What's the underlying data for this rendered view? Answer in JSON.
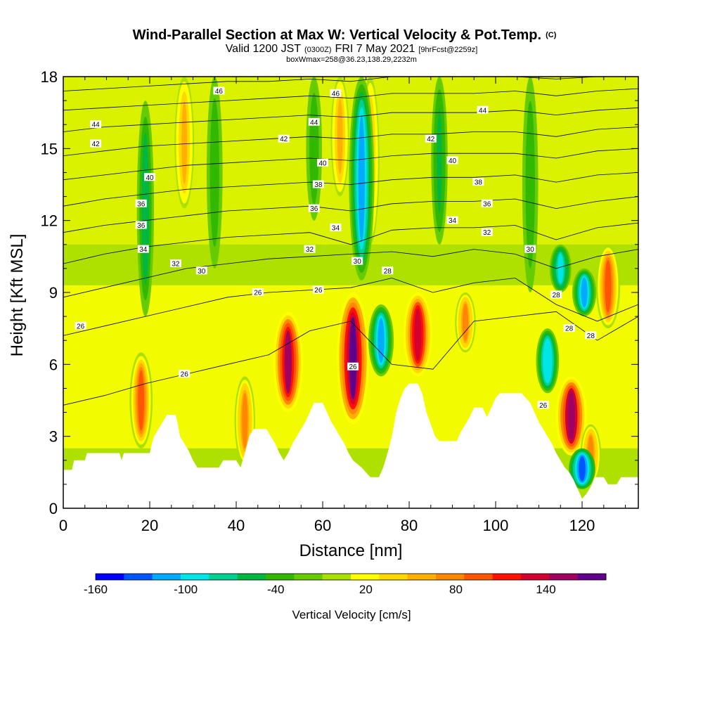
{
  "chart_data": {
    "type": "heatmap",
    "title": {
      "main": "Wind-Parallel Section at Max W: Vertical Velocity & Pot.Temp.",
      "copyright": "(C)",
      "valid_prefix": "Valid 1200 JST",
      "valid_utc": "(0300Z)",
      "valid_date": "FRI 7 May 2021",
      "forecast": "[9hrFcst@2259z]",
      "boxinfo": "boxWmax=258@36.23,138.29,2232m"
    },
    "xlabel": "Distance [nm]",
    "ylabel": "Height [Kft MSL]",
    "xlim": [
      0,
      133
    ],
    "ylim": [
      0,
      18
    ],
    "x_ticks": [
      "0",
      "20",
      "40",
      "60",
      "80",
      "100",
      "120"
    ],
    "y_ticks": [
      "0",
      "3",
      "6",
      "9",
      "12",
      "15",
      "18"
    ],
    "colorbar": {
      "label": "Vertical Velocity [cm/s]",
      "tick_labels": [
        "-160",
        "-100",
        "-40",
        "20",
        "80",
        "140"
      ],
      "tick_values": [
        -160,
        -100,
        -40,
        20,
        80,
        140
      ],
      "bin_edges": [
        -160,
        -140,
        -120,
        -100,
        -80,
        -60,
        -40,
        -20,
        0,
        20,
        40,
        60,
        80,
        100,
        120,
        140,
        160,
        180
      ],
      "colors": [
        "#0000ff",
        "#0055ff",
        "#00aaff",
        "#00e5e5",
        "#00d090",
        "#00b840",
        "#33b800",
        "#66cc00",
        "#aae000",
        "#ffff00",
        "#ffd800",
        "#ffb000",
        "#ff8800",
        "#ff5500",
        "#ff1100",
        "#d40030",
        "#a00060",
        "#60008a"
      ]
    },
    "updraft_columns": [
      {
        "x": 18,
        "w": 100,
        "ybot": 2.5,
        "ytop": 6.5
      },
      {
        "x": 28,
        "w": 70,
        "ybot": 12.5,
        "ytop": 18
      },
      {
        "x": 42,
        "w": 80,
        "ybot": 1.8,
        "ytop": 5.5
      },
      {
        "x": 52,
        "w": 160,
        "ybot": 4.0,
        "ytop": 8.2
      },
      {
        "x": 64,
        "w": 60,
        "ybot": 13.0,
        "ytop": 18
      },
      {
        "x": 67,
        "w": 180,
        "ybot": 3.5,
        "ytop": 9.0
      },
      {
        "x": 71,
        "w": 60,
        "ybot": 11.0,
        "ytop": 18
      },
      {
        "x": 82,
        "w": 150,
        "ybot": 5.5,
        "ytop": 9.0
      },
      {
        "x": 93,
        "w": 80,
        "ybot": 6.5,
        "ytop": 9.0
      },
      {
        "x": 117.5,
        "w": 170,
        "ybot": 2.2,
        "ytop": 5.5
      },
      {
        "x": 122,
        "w": 80,
        "ybot": 1.0,
        "ytop": 3.5
      },
      {
        "x": 126,
        "w": 110,
        "ybot": 7.5,
        "ytop": 11.0
      }
    ],
    "downdraft_columns": [
      {
        "x": 69,
        "w": -120,
        "ybot": 9.5,
        "ytop": 18
      },
      {
        "x": 73.5,
        "w": -120,
        "ybot": 5.5,
        "ytop": 8.5
      },
      {
        "x": 112,
        "w": -100,
        "ybot": 4.8,
        "ytop": 7.5
      },
      {
        "x": 115,
        "w": -90,
        "ybot": 9.0,
        "ytop": 11.0
      },
      {
        "x": 120,
        "w": -130,
        "ybot": 0.8,
        "ytop": 2.5
      },
      {
        "x": 120.5,
        "w": -110,
        "ybot": 8.0,
        "ytop": 10.0
      },
      {
        "x": 19,
        "w": -50,
        "ybot": 8.0,
        "ytop": 17.0
      },
      {
        "x": 35,
        "w": -40,
        "ybot": 10.0,
        "ytop": 18.0
      },
      {
        "x": 58,
        "w": -40,
        "ybot": 12.0,
        "ytop": 18.0
      },
      {
        "x": 87,
        "w": -45,
        "ybot": 11.0,
        "ytop": 18.0
      },
      {
        "x": 108,
        "w": -40,
        "ybot": 9.0,
        "ytop": 18.0
      }
    ],
    "terrain_kft": [
      [
        0,
        1.6
      ],
      [
        2,
        1.6
      ],
      [
        2.5,
        2.0
      ],
      [
        5,
        2.0
      ],
      [
        5.5,
        2.3
      ],
      [
        13,
        2.3
      ],
      [
        13.5,
        2.0
      ],
      [
        14,
        2.3
      ],
      [
        20,
        2.3
      ],
      [
        20.5,
        2.7
      ],
      [
        21,
        3.0
      ],
      [
        22,
        3.3
      ],
      [
        23,
        3.6
      ],
      [
        24,
        3.9
      ],
      [
        26,
        3.9
      ],
      [
        26.5,
        3.5
      ],
      [
        27,
        3.0
      ],
      [
        28,
        2.7
      ],
      [
        29,
        2.4
      ],
      [
        30,
        2.0
      ],
      [
        31,
        1.7
      ],
      [
        36,
        1.7
      ],
      [
        37,
        2.0
      ],
      [
        40,
        2.0
      ],
      [
        41,
        1.7
      ],
      [
        42,
        2.3
      ],
      [
        43,
        3.0
      ],
      [
        44,
        3.3
      ],
      [
        47,
        3.3
      ],
      [
        48,
        3.0
      ],
      [
        49,
        2.7
      ],
      [
        50,
        2.3
      ],
      [
        51,
        2.0
      ],
      [
        52,
        2.3
      ],
      [
        53,
        2.7
      ],
      [
        54,
        3.0
      ],
      [
        55,
        3.3
      ],
      [
        56,
        3.6
      ],
      [
        57,
        4.0
      ],
      [
        58,
        4.4
      ],
      [
        60,
        4.4
      ],
      [
        61,
        4.0
      ],
      [
        62,
        3.6
      ],
      [
        63,
        3.3
      ],
      [
        64,
        3.0
      ],
      [
        65,
        2.7
      ],
      [
        66,
        2.3
      ],
      [
        67,
        2.0
      ],
      [
        69,
        1.7
      ],
      [
        71,
        1.3
      ],
      [
        73,
        1.3
      ],
      [
        74,
        1.7
      ],
      [
        75,
        2.3
      ],
      [
        76,
        3.0
      ],
      [
        77,
        4.0
      ],
      [
        78,
        4.6
      ],
      [
        79,
        5.0
      ],
      [
        80,
        5.2
      ],
      [
        82,
        5.2
      ],
      [
        83,
        4.8
      ],
      [
        84,
        4.0
      ],
      [
        85,
        3.5
      ],
      [
        86,
        3.0
      ],
      [
        87,
        2.8
      ],
      [
        91,
        2.8
      ],
      [
        92,
        3.2
      ],
      [
        93,
        3.5
      ],
      [
        94,
        3.8
      ],
      [
        95,
        4.2
      ],
      [
        97,
        4.2
      ],
      [
        98,
        3.8
      ],
      [
        99,
        4.2
      ],
      [
        100,
        4.6
      ],
      [
        101,
        4.8
      ],
      [
        106,
        4.8
      ],
      [
        107,
        4.6
      ],
      [
        108,
        4.4
      ],
      [
        109,
        4.0
      ],
      [
        110,
        3.6
      ],
      [
        111,
        3.3
      ],
      [
        112,
        3.0
      ],
      [
        113,
        2.7
      ],
      [
        114,
        2.3
      ],
      [
        115,
        2.0
      ],
      [
        116,
        1.7
      ],
      [
        117,
        1.5
      ],
      [
        118,
        1.2
      ],
      [
        119,
        0.8
      ],
      [
        120,
        0.4
      ],
      [
        121,
        0.6
      ],
      [
        122,
        0.9
      ],
      [
        123,
        1.3
      ],
      [
        125,
        1.3
      ],
      [
        126,
        1.0
      ],
      [
        128,
        1.0
      ],
      [
        129,
        1.3
      ],
      [
        133,
        1.3
      ]
    ],
    "isentropes": [
      {
        "theta": 26,
        "y": [
          4.3,
          4.7,
          5.2,
          5.6,
          6.0,
          6.4,
          7.4,
          7.8,
          6.0,
          5.8,
          7.8,
          8.0,
          8.2,
          7.0,
          8.0
        ]
      },
      {
        "theta": 28,
        "y": [
          7.2,
          7.6,
          8.0,
          8.4,
          8.8,
          9.0,
          9.1,
          9.2,
          9.6,
          9.0,
          9.4,
          9.6,
          8.5,
          7.8,
          8.5
        ]
      },
      {
        "theta": 30,
        "y": [
          8.8,
          9.2,
          9.6,
          10.0,
          10.2,
          10.4,
          10.5,
          10.6,
          10.7,
          10.5,
          10.8,
          10.6,
          10.0,
          10.5,
          10.8
        ]
      },
      {
        "theta": 32,
        "y": [
          10.2,
          10.6,
          10.9,
          11.1,
          11.3,
          11.4,
          11.5,
          11.0,
          11.6,
          11.7,
          11.7,
          11.8,
          11.2,
          11.7,
          11.9
        ]
      },
      {
        "theta": 34,
        "y": [
          11.5,
          11.8,
          12.0,
          12.2,
          12.4,
          12.5,
          12.6,
          12.4,
          12.7,
          12.8,
          12.8,
          12.9,
          12.5,
          12.8,
          13.0
        ]
      },
      {
        "theta": 36,
        "y": [
          12.6,
          12.9,
          13.1,
          13.3,
          13.4,
          13.5,
          13.6,
          13.5,
          13.7,
          13.8,
          13.8,
          13.9,
          13.6,
          13.9,
          14.0
        ]
      },
      {
        "theta": 38,
        "y": [
          13.7,
          13.9,
          14.1,
          14.3,
          14.4,
          14.5,
          14.6,
          14.5,
          14.7,
          14.8,
          14.8,
          14.8,
          14.6,
          14.9,
          15.0
        ]
      },
      {
        "theta": 40,
        "y": [
          14.7,
          14.9,
          15.1,
          15.2,
          15.3,
          15.4,
          15.5,
          15.4,
          15.6,
          15.6,
          15.7,
          15.7,
          15.5,
          15.8,
          15.9
        ]
      },
      {
        "theta": 42,
        "y": [
          15.7,
          15.9,
          16.0,
          16.1,
          16.2,
          16.3,
          16.4,
          16.3,
          16.5,
          16.5,
          16.5,
          16.6,
          16.4,
          16.6,
          16.7
        ]
      },
      {
        "theta": 44,
        "y": [
          16.6,
          16.7,
          16.8,
          16.9,
          17.0,
          17.1,
          17.2,
          17.1,
          17.3,
          17.3,
          17.3,
          17.4,
          17.2,
          17.4,
          17.5
        ]
      },
      {
        "theta": 46,
        "y": [
          17.4,
          17.5,
          17.6,
          17.7,
          17.8,
          17.8,
          17.9,
          17.8,
          18.0,
          18.0,
          18.0,
          18.0,
          17.9,
          18.0,
          18.0
        ]
      }
    ],
    "contour_labels": [
      {
        "text": "46",
        "x": 36,
        "y": 17.4
      },
      {
        "text": "46",
        "x": 63,
        "y": 17.3
      },
      {
        "text": "44",
        "x": 7.5,
        "y": 16.0
      },
      {
        "text": "44",
        "x": 58,
        "y": 16.1
      },
      {
        "text": "44",
        "x": 97,
        "y": 16.6
      },
      {
        "text": "42",
        "x": 7.5,
        "y": 15.2
      },
      {
        "text": "42",
        "x": 51,
        "y": 15.4
      },
      {
        "text": "42",
        "x": 85,
        "y": 15.4
      },
      {
        "text": "40",
        "x": 20,
        "y": 13.8
      },
      {
        "text": "40",
        "x": 60,
        "y": 14.4
      },
      {
        "text": "40",
        "x": 90,
        "y": 14.5
      },
      {
        "text": "38",
        "x": 59,
        "y": 13.5
      },
      {
        "text": "38",
        "x": 96,
        "y": 13.6
      },
      {
        "text": "36",
        "x": 18,
        "y": 12.7
      },
      {
        "text": "36",
        "x": 58,
        "y": 12.5
      },
      {
        "text": "36",
        "x": 98,
        "y": 12.7
      },
      {
        "text": "36",
        "x": 18,
        "y": 11.8
      },
      {
        "text": "34",
        "x": 63,
        "y": 11.7
      },
      {
        "text": "34",
        "x": 90,
        "y": 12.0
      },
      {
        "text": "34",
        "x": 18.5,
        "y": 10.8
      },
      {
        "text": "32",
        "x": 57,
        "y": 10.8
      },
      {
        "text": "32",
        "x": 98,
        "y": 11.5
      },
      {
        "text": "32",
        "x": 26,
        "y": 10.2
      },
      {
        "text": "30",
        "x": 32,
        "y": 9.9
      },
      {
        "text": "30",
        "x": 68,
        "y": 10.3
      },
      {
        "text": "30",
        "x": 108,
        "y": 10.8
      },
      {
        "text": "28",
        "x": 75,
        "y": 9.9
      },
      {
        "text": "28",
        "x": 114,
        "y": 8.9
      },
      {
        "text": "28",
        "x": 117,
        "y": 7.5
      },
      {
        "text": "28",
        "x": 122,
        "y": 7.2
      },
      {
        "text": "26",
        "x": 45,
        "y": 9.0
      },
      {
        "text": "26",
        "x": 59,
        "y": 9.1
      },
      {
        "text": "26",
        "x": 4,
        "y": 7.6
      },
      {
        "text": "26",
        "x": 28,
        "y": 5.6
      },
      {
        "text": "26",
        "x": 67,
        "y": 5.9
      },
      {
        "text": "26",
        "x": 111,
        "y": 4.3
      }
    ]
  }
}
